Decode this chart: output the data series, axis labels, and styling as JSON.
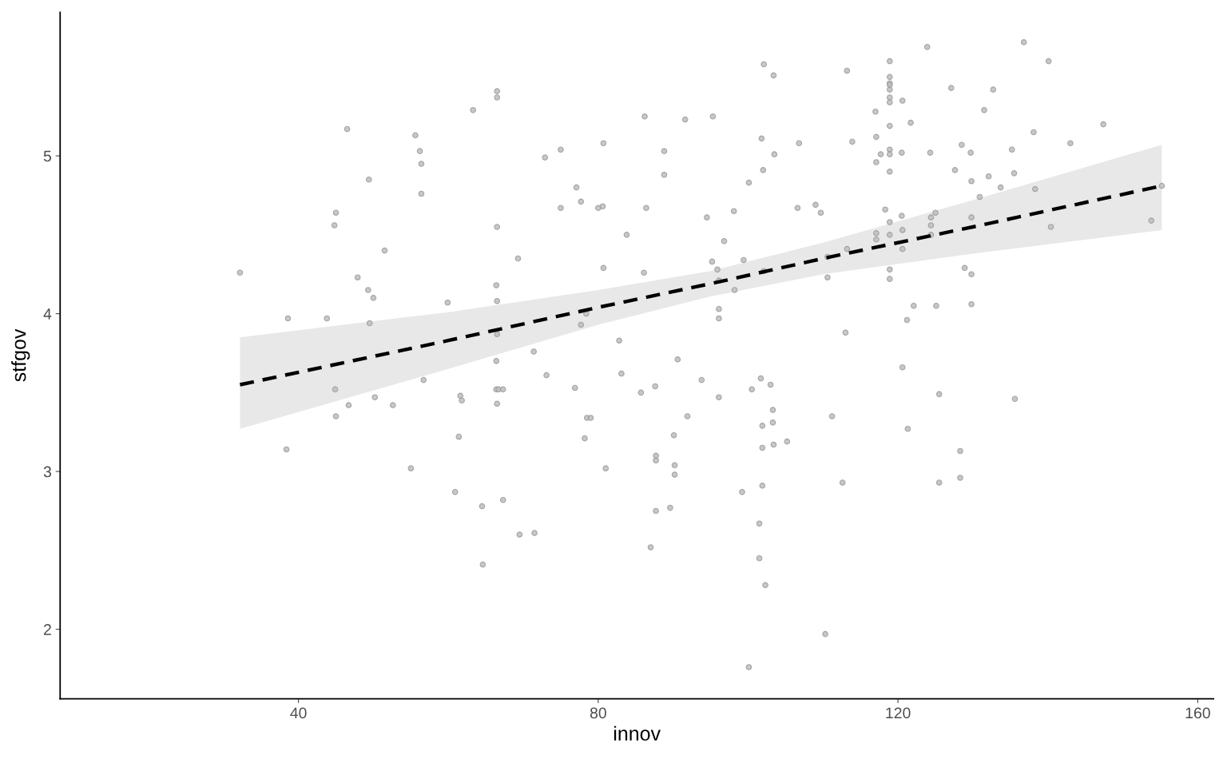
{
  "chart_data": {
    "type": "scatter",
    "xlabel": "innov",
    "ylabel": "stfgov",
    "xlim": [
      8.2,
      162.1
    ],
    "ylim": [
      1.56,
      5.91
    ],
    "xticks": [
      40,
      80,
      120,
      160
    ],
    "yticks": [
      2,
      3,
      4,
      5
    ],
    "grid": false,
    "series": [
      {
        "marker": "circle",
        "color": "#bdbdbd",
        "x": [
          32.2,
          38.6,
          38.4,
          43.8,
          44.8,
          45.0,
          44.9,
          45.0,
          46.5,
          46.7,
          47.9,
          49.3,
          49.4,
          49.5,
          50.0,
          50.2,
          51.5,
          52.6,
          55.0,
          55.6,
          56.2,
          56.4,
          56.4,
          56.7,
          59.9,
          60.9,
          61.4,
          61.6,
          61.8,
          63.3,
          64.5,
          64.6,
          66.5,
          66.5,
          66.5,
          66.4,
          66.5,
          66.5,
          66.4,
          66.4,
          66.7,
          67.3,
          66.5,
          67.3,
          69.3,
          69.5,
          71.4,
          71.5,
          72.9,
          73.1,
          75.0,
          75.0,
          76.9,
          77.1,
          77.7,
          77.7,
          78.2,
          78.4,
          78.5,
          79.0,
          80.0,
          80.6,
          80.7,
          80.7,
          81.0,
          82.8,
          83.1,
          83.8,
          85.7,
          86.1,
          86.2,
          86.4,
          87.0,
          87.6,
          87.7,
          87.7,
          87.7,
          88.8,
          88.8,
          89.6,
          90.1,
          90.2,
          90.2,
          90.6,
          91.6,
          91.9,
          93.8,
          94.5,
          95.2,
          95.3,
          95.9,
          96.1,
          96.1,
          96.1,
          96.1,
          96.8,
          98.1,
          98.2,
          99.2,
          99.4,
          100.1,
          100.1,
          100.5,
          101.5,
          101.5,
          101.7,
          101.8,
          101.9,
          101.9,
          101.9,
          102.0,
          102.1,
          102.1,
          102.3,
          103.0,
          103.3,
          103.3,
          103.4,
          103.4,
          103.5,
          105.2,
          106.6,
          106.8,
          109.0,
          109.7,
          110.3,
          110.6,
          110.6,
          111.2,
          112.6,
          113.0,
          113.2,
          113.2,
          113.9,
          117.0,
          117.1,
          117.1,
          117.1,
          117.1,
          117.7,
          118.3,
          118.9,
          118.9,
          118.9,
          118.9,
          118.9,
          118.9,
          118.9,
          118.9,
          118.9,
          118.9,
          118.9,
          118.9,
          118.9,
          118.9,
          118.9,
          120.5,
          120.5,
          120.6,
          120.6,
          120.6,
          120.6,
          121.2,
          121.3,
          121.7,
          122.1,
          123.9,
          124.3,
          124.4,
          124.4,
          124.4,
          125.0,
          125.1,
          125.5,
          125.5,
          127.1,
          127.6,
          128.3,
          128.3,
          128.5,
          128.9,
          129.7,
          129.8,
          129.8,
          129.8,
          129.8,
          130.9,
          131.5,
          132.1,
          132.7,
          133.7,
          135.2,
          135.5,
          135.6,
          136.8,
          138.1,
          138.3,
          140.1,
          140.4,
          143.0,
          147.4,
          153.8,
          155.2
        ],
        "values": [
          4.26,
          3.97,
          3.14,
          3.97,
          4.56,
          4.64,
          3.52,
          3.35,
          5.17,
          3.42,
          4.23,
          4.15,
          4.85,
          3.94,
          4.1,
          3.47,
          4.4,
          3.42,
          3.02,
          5.13,
          5.03,
          4.95,
          4.76,
          3.58,
          4.07,
          2.87,
          3.22,
          3.48,
          3.45,
          5.29,
          2.78,
          2.41,
          5.41,
          5.37,
          4.55,
          4.18,
          4.08,
          3.87,
          3.7,
          3.52,
          3.52,
          3.52,
          3.43,
          2.82,
          4.35,
          2.6,
          3.76,
          2.61,
          4.99,
          3.61,
          5.04,
          4.67,
          3.53,
          4.8,
          4.71,
          3.93,
          3.21,
          4.0,
          3.34,
          3.34,
          4.67,
          4.68,
          5.08,
          4.29,
          3.02,
          3.83,
          3.62,
          4.5,
          3.5,
          4.26,
          5.25,
          4.67,
          2.52,
          3.54,
          3.1,
          3.07,
          2.75,
          5.03,
          4.88,
          2.77,
          3.23,
          3.04,
          2.98,
          3.71,
          5.23,
          3.35,
          3.58,
          4.61,
          4.33,
          5.25,
          4.28,
          4.21,
          4.03,
          3.97,
          3.47,
          4.46,
          4.65,
          4.15,
          2.87,
          4.34,
          1.76,
          4.83,
          3.52,
          2.67,
          2.45,
          3.59,
          5.11,
          3.29,
          3.15,
          2.91,
          4.91,
          5.58,
          4.27,
          2.28,
          3.55,
          3.39,
          3.31,
          5.51,
          3.17,
          5.01,
          3.19,
          4.67,
          5.08,
          4.69,
          4.64,
          1.97,
          4.23,
          4.36,
          3.35,
          2.93,
          3.88,
          5.54,
          4.41,
          5.09,
          5.28,
          5.12,
          4.96,
          4.51,
          4.47,
          5.01,
          4.66,
          5.6,
          5.5,
          5.46,
          5.45,
          5.42,
          5.37,
          5.34,
          5.19,
          5.04,
          5.01,
          4.9,
          4.58,
          4.5,
          4.28,
          4.22,
          5.02,
          4.62,
          5.35,
          4.53,
          4.41,
          3.66,
          3.96,
          3.27,
          5.21,
          4.05,
          5.69,
          5.02,
          4.61,
          4.56,
          4.5,
          4.64,
          4.05,
          3.49,
          2.93,
          5.43,
          4.91,
          3.13,
          2.96,
          5.07,
          4.29,
          5.02,
          4.84,
          4.61,
          4.25,
          4.06,
          4.74,
          5.29,
          4.87,
          5.42,
          4.8,
          5.04,
          4.89,
          3.46,
          5.72,
          5.15,
          4.79,
          5.6,
          4.55,
          5.08,
          5.2,
          4.59,
          4.81
        ]
      },
      {
        "type": "line",
        "marker": "none",
        "color": "#000000",
        "line_style": "dashed",
        "x": [
          32.2,
          60,
          80,
          95,
          110,
          130,
          155.2
        ],
        "values": [
          3.55,
          3.83,
          4.04,
          4.19,
          4.35,
          4.55,
          4.81
        ],
        "lower": [
          3.27,
          3.65,
          3.93,
          4.11,
          4.25,
          4.38,
          4.53
        ],
        "upper": [
          3.85,
          4.01,
          4.15,
          4.27,
          4.45,
          4.72,
          5.07
        ]
      }
    ]
  }
}
